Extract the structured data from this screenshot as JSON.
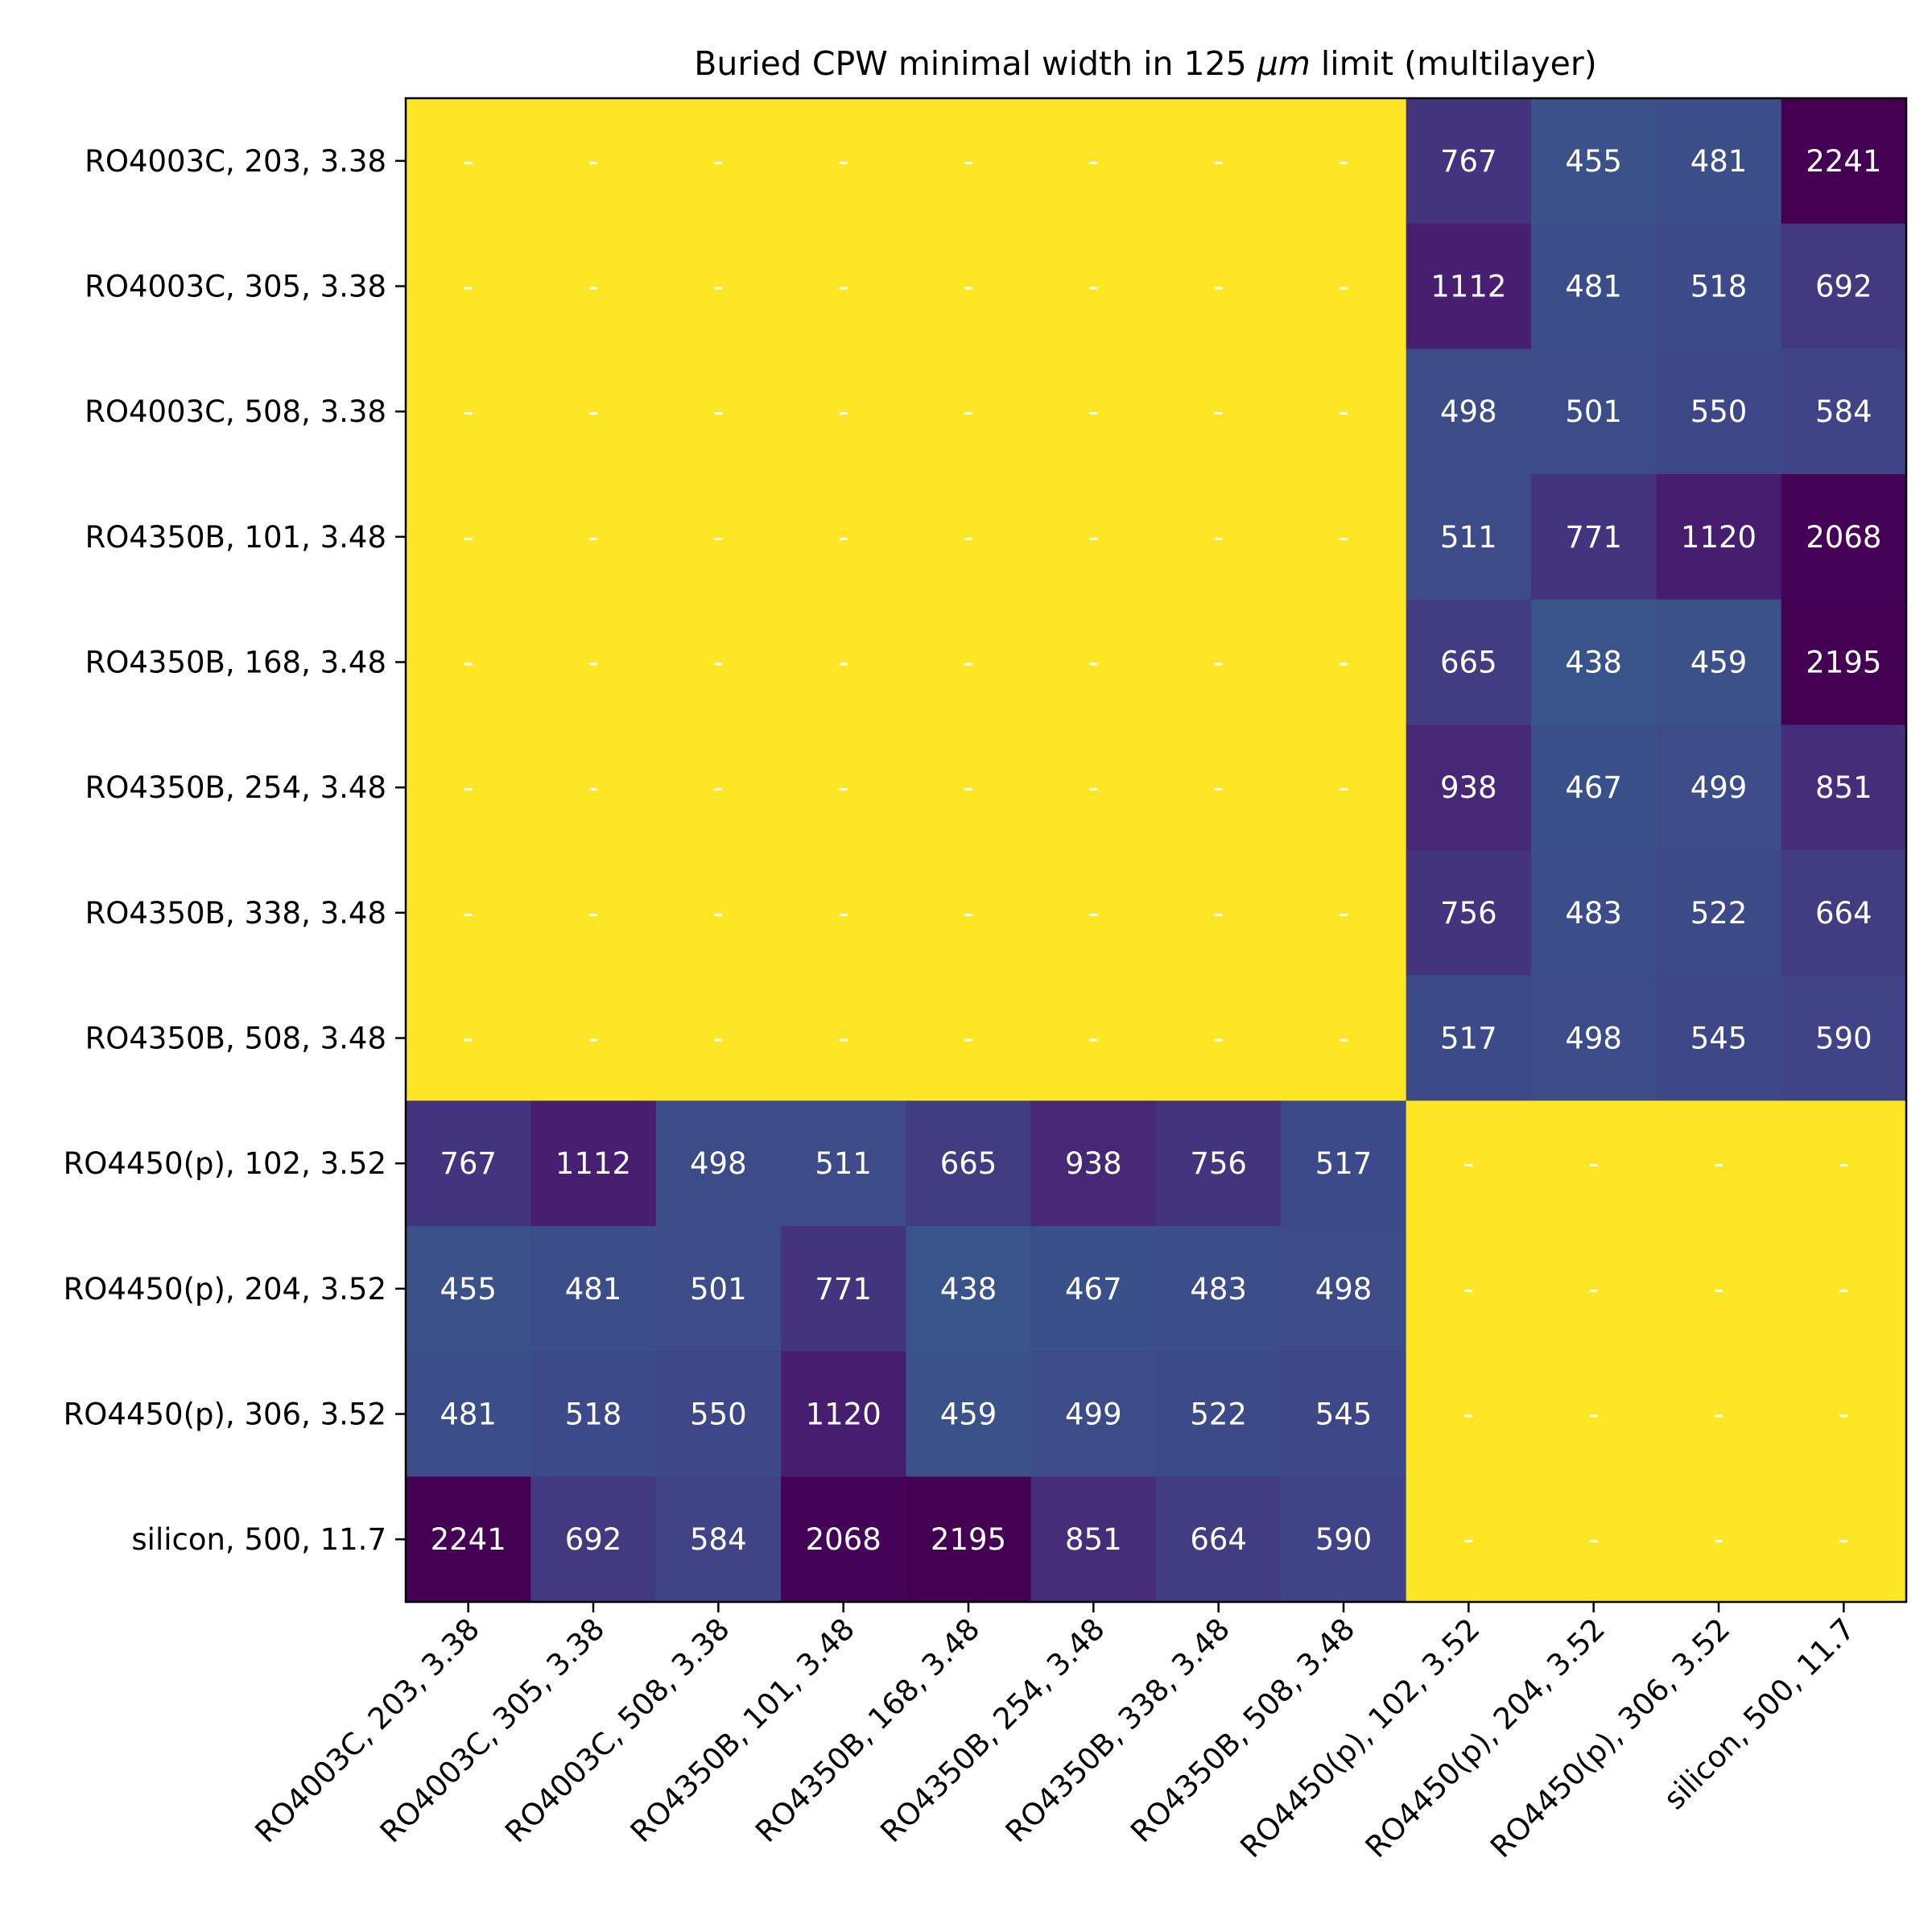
{
  "chart_data": {
    "type": "heatmap",
    "title_prefix": "Buried CPW minimal width in 125 ",
    "title_mu": "μm",
    "title_suffix": " limit (multilayer)",
    "title": "Buried CPW minimal width in 125 μm limit (multilayer)",
    "rows": [
      "RO4003C, 203, 3.38",
      "RO4003C, 305, 3.38",
      "RO4003C, 508, 3.38",
      "RO4350B, 101, 3.48",
      "RO4350B, 168, 3.48",
      "RO4350B, 254, 3.48",
      "RO4350B, 338, 3.48",
      "RO4350B, 508, 3.48",
      "RO4450(p), 102, 3.52",
      "RO4450(p), 204, 3.52",
      "RO4450(p), 306, 3.52",
      "silicon, 500, 11.7"
    ],
    "columns": [
      "RO4003C, 203, 3.38",
      "RO4003C, 305, 3.38",
      "RO4003C, 508, 3.38",
      "RO4350B, 101, 3.48",
      "RO4350B, 168, 3.48",
      "RO4350B, 254, 3.48",
      "RO4350B, 338, 3.48",
      "RO4350B, 508, 3.48",
      "RO4450(p), 102, 3.52",
      "RO4450(p), 204, 3.52",
      "RO4450(p), 306, 3.52",
      "silicon, 500, 11.7"
    ],
    "values": [
      [
        null,
        null,
        null,
        null,
        null,
        null,
        null,
        null,
        767,
        455,
        481,
        2241
      ],
      [
        null,
        null,
        null,
        null,
        null,
        null,
        null,
        null,
        1112,
        481,
        518,
        692
      ],
      [
        null,
        null,
        null,
        null,
        null,
        null,
        null,
        null,
        498,
        501,
        550,
        584
      ],
      [
        null,
        null,
        null,
        null,
        null,
        null,
        null,
        null,
        511,
        771,
        1120,
        2068
      ],
      [
        null,
        null,
        null,
        null,
        null,
        null,
        null,
        null,
        665,
        438,
        459,
        2195
      ],
      [
        null,
        null,
        null,
        null,
        null,
        null,
        null,
        null,
        938,
        467,
        499,
        851
      ],
      [
        null,
        null,
        null,
        null,
        null,
        null,
        null,
        null,
        756,
        483,
        522,
        664
      ],
      [
        null,
        null,
        null,
        null,
        null,
        null,
        null,
        null,
        517,
        498,
        545,
        590
      ],
      [
        767,
        1112,
        498,
        511,
        665,
        938,
        756,
        517,
        null,
        null,
        null,
        null
      ],
      [
        455,
        481,
        501,
        771,
        438,
        467,
        483,
        498,
        null,
        null,
        null,
        null
      ],
      [
        481,
        518,
        550,
        1120,
        459,
        499,
        522,
        545,
        null,
        null,
        null,
        null
      ],
      [
        2241,
        692,
        584,
        2068,
        2195,
        851,
        664,
        590,
        null,
        null,
        null,
        null
      ]
    ],
    "missing_label": "-",
    "colormap": "viridis-inverted",
    "missing_color": "#fde725",
    "grid": false,
    "legend": "none"
  }
}
